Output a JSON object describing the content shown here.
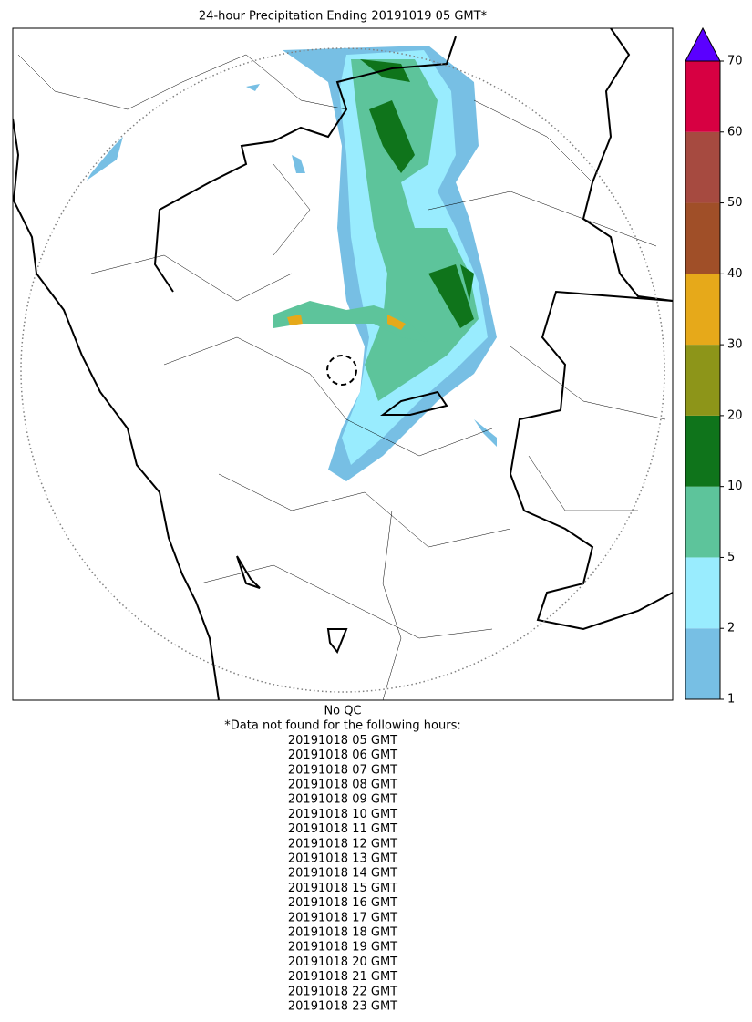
{
  "title": "24-hour Precipitation Ending 20191019 05 GMT*",
  "colorbar": {
    "ticks": [
      1,
      2,
      5,
      10,
      20,
      30,
      40,
      50,
      60,
      70
    ],
    "colors": [
      "#77bfe4",
      "#99ecfe",
      "#5dc49b",
      "#0f741b",
      "#8d9519",
      "#e6a91a",
      "#a04f28",
      "#a64a40",
      "#d70042"
    ],
    "extend_color": "#5a00ff"
  },
  "footnote": {
    "qc": "No QC",
    "heading": "*Data not found for the following hours:",
    "hours": [
      "20191018 05 GMT",
      "20191018 06 GMT",
      "20191018 07 GMT",
      "20191018 08 GMT",
      "20191018 09 GMT",
      "20191018 10 GMT",
      "20191018 11 GMT",
      "20191018 12 GMT",
      "20191018 13 GMT",
      "20191018 14 GMT",
      "20191018 15 GMT",
      "20191018 16 GMT",
      "20191018 17 GMT",
      "20191018 18 GMT",
      "20191018 19 GMT",
      "20191018 20 GMT",
      "20191018 21 GMT",
      "20191018 22 GMT",
      "20191018 23 GMT"
    ]
  }
}
